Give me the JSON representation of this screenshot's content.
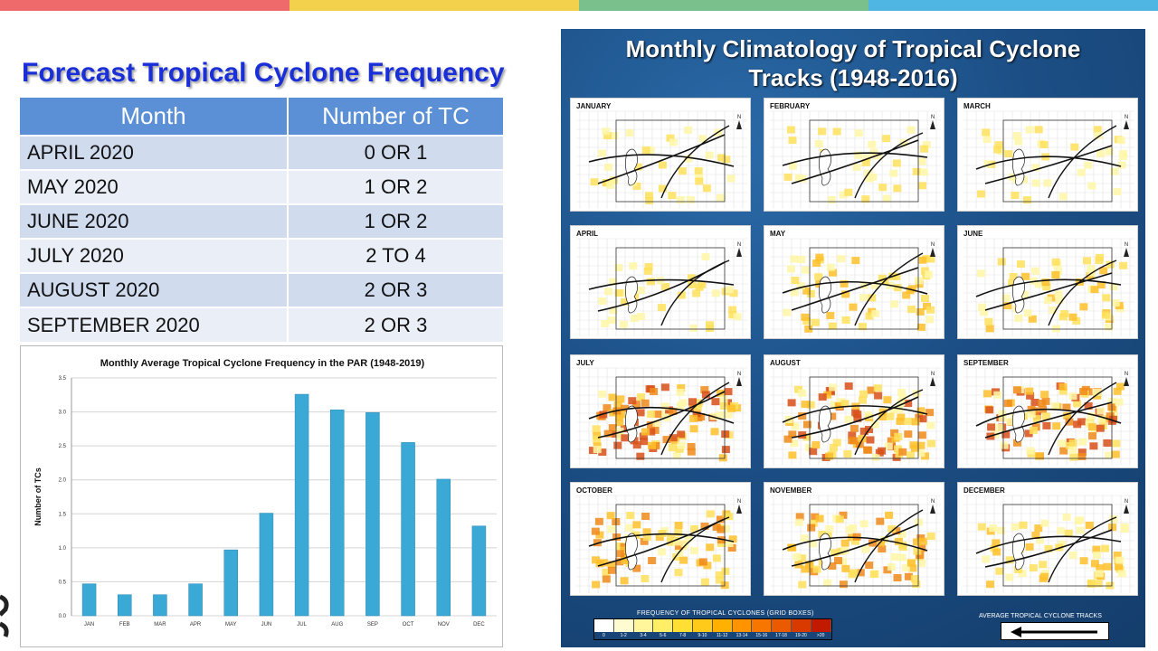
{
  "colors": {
    "topbar": [
      "#ef6a6a",
      "#f4d14d",
      "#79c08c",
      "#4fb6e3"
    ],
    "title": "#1a2fd8",
    "table_header": "#5b8fd6",
    "bar": "#3aa9d6"
  },
  "slide": {
    "title": "Forecast Tropical Cyclone Frequency"
  },
  "table": {
    "headers": [
      "Month",
      "Number of TC"
    ],
    "rows": [
      [
        "APRIL 2020",
        "0 OR 1"
      ],
      [
        "MAY 2020",
        "1 OR 2"
      ],
      [
        "JUNE 2020",
        "1 OR 2"
      ],
      [
        "JULY 2020",
        "2 TO 4"
      ],
      [
        "AUGUST 2020",
        "2 OR 3"
      ],
      [
        "SEPTEMBER 2020",
        "2 OR 3"
      ]
    ]
  },
  "chart_data": {
    "type": "bar",
    "title": "Monthly Average Tropical Cyclone Frequency in the PAR (1948-2019)",
    "xlabel": "",
    "ylabel": "Number of TCs",
    "categories": [
      "JAN",
      "FEB",
      "MAR",
      "APR",
      "MAY",
      "JUN",
      "JUL",
      "AUG",
      "SEP",
      "OCT",
      "NOV",
      "DEC"
    ],
    "values": [
      0.47,
      0.31,
      0.31,
      0.47,
      0.97,
      1.51,
      3.26,
      3.03,
      2.99,
      2.55,
      2.01,
      1.32
    ],
    "ylim": [
      0,
      3.5
    ],
    "yticks": [
      "0.0",
      "0.5",
      "1.0",
      "1.5",
      "2.0",
      "2.5",
      "3.0",
      "3.5"
    ],
    "grid": true
  },
  "climatology": {
    "title_line1": "Monthly Climatology of Tropical Cyclone",
    "title_line2": "Tracks (1948-2016)",
    "panels": [
      "JANUARY",
      "FEBRUARY",
      "MARCH",
      "APRIL",
      "MAY",
      "JUNE",
      "JULY",
      "AUGUST",
      "SEPTEMBER",
      "OCTOBER",
      "NOVEMBER",
      "DECEMBER"
    ],
    "panel_intensity": [
      1,
      1,
      1,
      1,
      2,
      2,
      4,
      4,
      4,
      3,
      3,
      2
    ],
    "legend_title": "FREQUENCY OF TROPICAL CYCLONES (GRID BOXES)",
    "legend_labels": [
      "0",
      "1-2",
      "3-4",
      "5-6",
      "7-8",
      "9-10",
      "11-12",
      "13-14",
      "15-16",
      "17-18",
      "19-20",
      ">20"
    ],
    "legend_colors": [
      "#ffffff",
      "#fffbd0",
      "#fff59a",
      "#ffee66",
      "#ffdf33",
      "#ffca1a",
      "#ffb000",
      "#ff9400",
      "#f77600",
      "#ea5a00",
      "#d93a00",
      "#c21a00"
    ],
    "avg_label": "AVERAGE TROPICAL CYCLONE TRACKS"
  }
}
